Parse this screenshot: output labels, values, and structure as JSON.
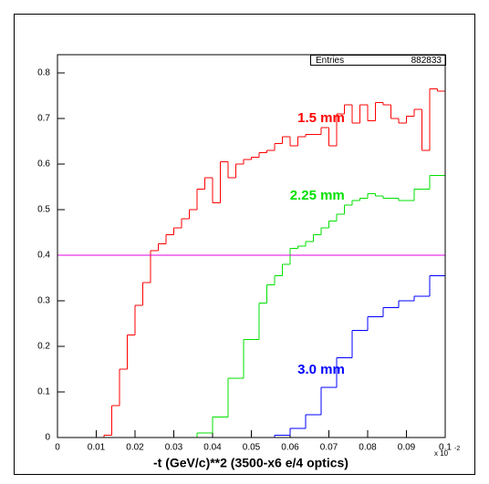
{
  "chart_data": {
    "type": "histogram",
    "xlabel": "-t (GeV/c)**2  (3500-x6 e/4  optics)",
    "x_multiplier_label": "x 10",
    "x_multiplier_exponent": "-2",
    "stats": {
      "label": "Entries",
      "value": 882833
    },
    "xlim": [
      0,
      0.1
    ],
    "ylim": [
      0,
      0.84
    ],
    "xticks": [
      0,
      0.01,
      0.02,
      0.03,
      0.04,
      0.05,
      0.06,
      0.07,
      0.08,
      0.09,
      0.1
    ],
    "yticks": [
      0,
      0.1,
      0.2,
      0.3,
      0.4,
      0.5,
      0.6,
      0.7,
      0.8
    ],
    "hline": {
      "value": 0.4,
      "color": "#e000e0"
    },
    "bins": [
      0,
      0.002,
      0.004,
      0.006,
      0.008,
      0.01,
      0.012,
      0.014,
      0.016,
      0.018,
      0.02,
      0.022,
      0.024,
      0.026,
      0.028,
      0.03,
      0.032,
      0.034,
      0.036,
      0.038,
      0.04,
      0.042,
      0.044,
      0.046,
      0.048,
      0.05,
      0.052,
      0.054,
      0.056,
      0.058,
      0.06,
      0.062,
      0.064,
      0.066,
      0.068,
      0.07,
      0.072,
      0.074,
      0.076,
      0.078,
      0.08,
      0.082,
      0.084,
      0.086,
      0.088,
      0.09,
      0.092,
      0.094,
      0.096,
      0.098,
      0.1
    ],
    "series": [
      {
        "name": "1.5 mm",
        "color": "#ff0000",
        "label_at": [
          0.068,
          0.7
        ],
        "values": [
          0,
          0,
          0,
          0,
          0,
          0,
          0.005,
          0.07,
          0.15,
          0.225,
          0.29,
          0.34,
          0.41,
          0.425,
          0.445,
          0.46,
          0.48,
          0.5,
          0.545,
          0.57,
          0.515,
          0.605,
          0.57,
          0.6,
          0.61,
          0.615,
          0.625,
          0.63,
          0.645,
          0.66,
          0.64,
          0.66,
          0.665,
          0.665,
          0.68,
          0.64,
          0.71,
          0.73,
          0.69,
          0.73,
          0.695,
          0.735,
          0.73,
          0.7,
          0.69,
          0.705,
          0.72,
          0.63,
          0.765,
          0.76
        ]
      },
      {
        "name": "2.25 mm",
        "color": "#00e000",
        "label_at": [
          0.067,
          0.53
        ],
        "values": [
          0,
          0,
          0,
          0,
          0,
          0,
          0,
          0,
          0,
          0,
          0,
          0,
          0,
          0,
          0,
          0,
          0,
          0,
          0.01,
          0.01,
          0.045,
          0.045,
          0.13,
          0.13,
          0.215,
          0.215,
          0.295,
          0.335,
          0.355,
          0.38,
          0.415,
          0.42,
          0.43,
          0.445,
          0.46,
          0.475,
          0.49,
          0.51,
          0.52,
          0.525,
          0.535,
          0.53,
          0.525,
          0.525,
          0.52,
          0.52,
          0.545,
          0.545,
          0.575,
          0.575
        ]
      },
      {
        "name": "3.0 mm",
        "color": "#0000ff",
        "label_at": [
          0.068,
          0.148
        ],
        "values": [
          0,
          0,
          0,
          0,
          0,
          0,
          0,
          0,
          0,
          0,
          0,
          0,
          0,
          0,
          0,
          0,
          0,
          0,
          0,
          0,
          0,
          0,
          0,
          0,
          0,
          0,
          0,
          0,
          0.005,
          0.005,
          0.02,
          0.02,
          0.05,
          0.05,
          0.11,
          0.11,
          0.175,
          0.175,
          0.235,
          0.235,
          0.265,
          0.265,
          0.285,
          0.285,
          0.3,
          0.3,
          0.31,
          0.31,
          0.355,
          0.355
        ]
      }
    ]
  }
}
